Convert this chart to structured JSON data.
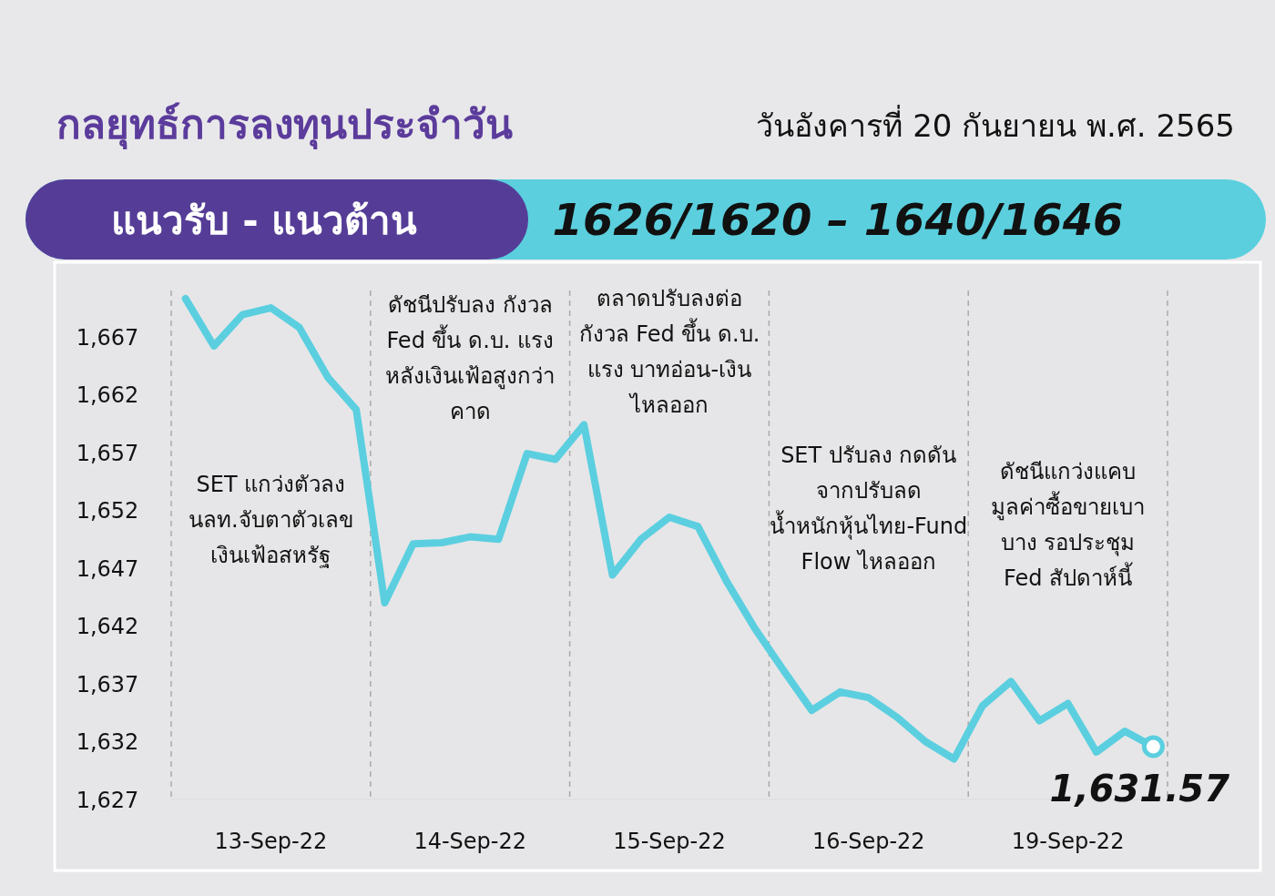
{
  "chart_data": {
    "type": "line",
    "title": "กลยุทธ์การลงทุนประจำวัน",
    "subtitle": "วันอังคารที่ 20 กันยายน พ.ศ. 2565",
    "categories": [
      null,
      null,
      null,
      "13-Sep-22",
      null,
      null,
      null,
      null,
      null,
      null,
      "14-Sep-22",
      null,
      null,
      null,
      null,
      null,
      null,
      "15-Sep-22",
      null,
      null,
      null,
      null,
      null,
      null,
      "16-Sep-22",
      null,
      null,
      null,
      null,
      null,
      null,
      "19-Sep-22",
      null,
      null,
      null
    ],
    "series": [
      {
        "color": "#5bcfdf",
        "values": [
          1670.3,
          1666.2,
          1668.9,
          1669.5,
          1667.8,
          1663.5,
          1660.7,
          1644.0,
          1649.1,
          1649.2,
          1649.7,
          1649.5,
          1656.9,
          1656.4,
          1659.4,
          1646.4,
          1649.5,
          1651.4,
          1650.6,
          1645.9,
          1641.8,
          1638.2,
          1634.7,
          1636.3,
          1635.8,
          1634.1,
          1632.0,
          1630.5,
          1635.1,
          1637.2,
          1633.8,
          1635.3,
          1631.1,
          1632.9,
          1631.57
        ],
        "value_labels": [
          null,
          null,
          null,
          null,
          null,
          null,
          null,
          null,
          null,
          null,
          null,
          null,
          null,
          null,
          null,
          null,
          null,
          null,
          null,
          null,
          null,
          null,
          null,
          null,
          null,
          null,
          null,
          null,
          null,
          null,
          null,
          null,
          null,
          null,
          "1,631.57"
        ]
      }
    ],
    "ylim": [
      1627,
      1671
    ],
    "yticks": [
      {
        "value": 1627,
        "label": "1,627"
      },
      {
        "value": 1632,
        "label": "1,632"
      },
      {
        "value": 1637,
        "label": "1,637"
      },
      {
        "value": 1642,
        "label": "1,642"
      },
      {
        "value": 1647,
        "label": "1,647"
      },
      {
        "value": 1652,
        "label": "1,652"
      },
      {
        "value": 1657,
        "label": "1,657"
      },
      {
        "value": 1662,
        "label": "1,662"
      },
      {
        "value": 1667,
        "label": "1,667"
      }
    ],
    "grid": false,
    "marker": "none",
    "line_style": "solid",
    "annotations": [
      "แนวรับ - แนวต้าน",
      "1626/1620 –  1640/1646",
      "SET แกว่งตัวลง\nนลท.จับตาตัวเลข\nเงินเฟ้อสหรัฐ",
      "ดัชนีปรับลง กังวล\nFed ขึ้น ด.บ. แรง\nหลังเงินเฟ้อสูงกว่า\nคาด",
      "ตลาดปรับลงต่อ\nกังวล Fed ขึ้น ด.บ.\nแรง บาทอ่อน-เงิน\nไหลออก",
      "SET ปรับลง กดดัน\nจากปรับลด\nน้ำหนักหุ้นไทย-Fund\nFlow ไหลออก",
      "ดัชนีแกว่งแคบ\nมูลค่าซื้อขายเบา\nบาง รอประชุม\nFed สัปดาห์นี้"
    ]
  }
}
